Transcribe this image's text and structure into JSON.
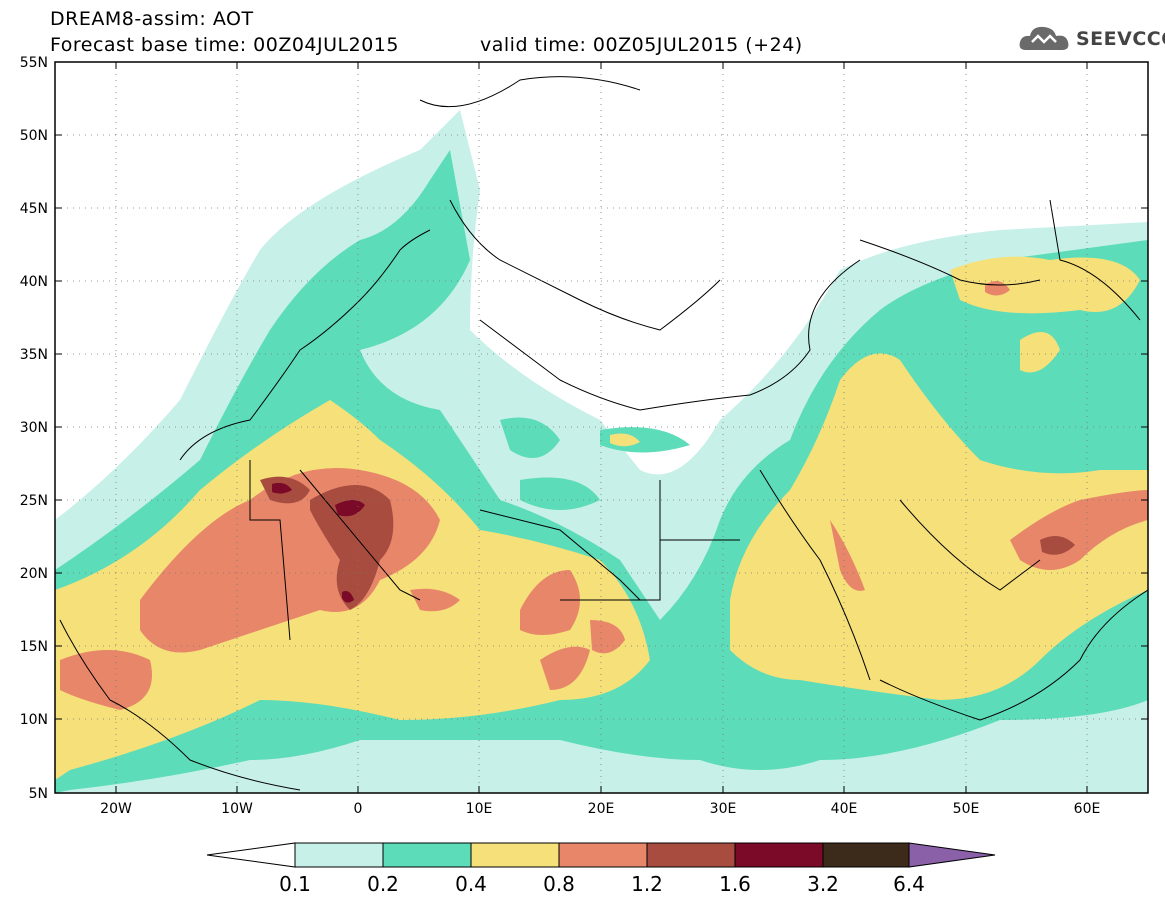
{
  "header": {
    "title": "DREAM8-assim: AOT",
    "base_time": "Forecast base time: 00Z04JUL2015",
    "valid_time": "valid time: 00Z05JUL2015 (+24)"
  },
  "logo": {
    "text": "SEEVCCC",
    "icon": "cloud-logo-icon"
  },
  "map": {
    "lon_range": [
      -25,
      65
    ],
    "lat_range": [
      5,
      55
    ],
    "lat_labels": [
      "55N",
      "50N",
      "45N",
      "40N",
      "35N",
      "30N",
      "25N",
      "20N",
      "15N",
      "10N",
      "5N"
    ],
    "lon_labels": [
      "20W",
      "10W",
      "0",
      "10E",
      "20E",
      "30E",
      "40E",
      "50E",
      "60E"
    ],
    "grid": true
  },
  "colorbar": {
    "labels": [
      "0.1",
      "0.2",
      "0.4",
      "0.8",
      "1.2",
      "1.6",
      "3.2",
      "6.4"
    ],
    "colors": [
      "#c6f0e8",
      "#5cdcb8",
      "#f5e07a",
      "#e8866a",
      "#a84c40",
      "#7a0a28",
      "#3c2a1a",
      "#8a60a8"
    ]
  }
}
